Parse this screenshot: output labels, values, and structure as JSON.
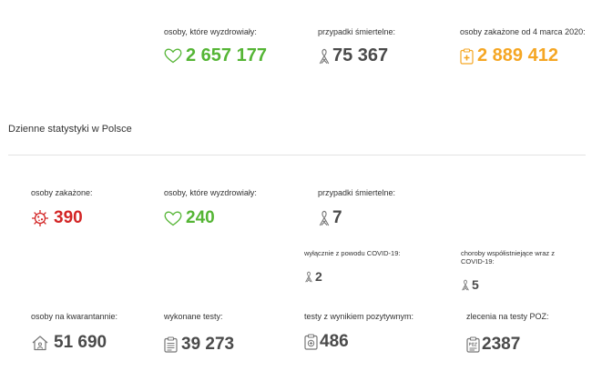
{
  "top": {
    "recovered": {
      "label": "osoby, które wyzdrowiały:",
      "value": "2 657 177"
    },
    "deaths": {
      "label": "przypadki śmiertelne:",
      "value": "75 367"
    },
    "infected_since": {
      "label": "osoby zakażone od 4 marca 2020:",
      "value": "2 889 412"
    }
  },
  "daily": {
    "title": "Dzienne statystyki w Polsce",
    "infected": {
      "label": "osoby zakażone:",
      "value": "390"
    },
    "recovered": {
      "label": "osoby, które wyzdrowiały:",
      "value": "240"
    },
    "deaths": {
      "label": "przypadki śmiertelne:",
      "value": "7"
    },
    "deaths_covid_only": {
      "label": "wyłącznie z powodu COVID-19:",
      "value": "2"
    },
    "deaths_comorbid": {
      "label": "choroby współistniejące wraz z COVID-19:",
      "value": "5"
    },
    "quarantine": {
      "label": "osoby na kwarantannie:",
      "value": "51 690"
    },
    "tests_done": {
      "label": "wykonane testy:",
      "value": "39 273"
    },
    "tests_positive": {
      "label": "testy z wynikiem pozytywnym:",
      "value": "486"
    },
    "poz_orders": {
      "label": "zlecenia na testy POZ:",
      "value": "2387"
    }
  },
  "colors": {
    "green": "#55b535",
    "red": "#d32626",
    "gray": "#4a4a4a",
    "orange": "#f5a623"
  },
  "icons": [
    "heart-icon",
    "ribbon-icon",
    "clipboard-cross-icon",
    "virus-icon",
    "house-icon",
    "test-clipboard-icon",
    "positive-test-icon",
    "poz-clipboard-icon"
  ]
}
